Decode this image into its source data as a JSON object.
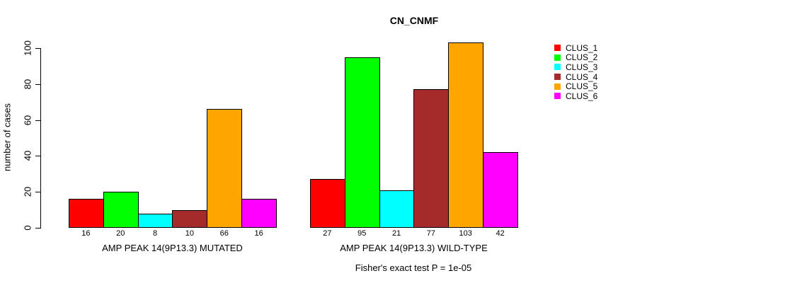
{
  "chart": {
    "title": "CN_CNMF",
    "y_axis_label": "number of cases",
    "footnote": "Fisher's exact test P = 1e-05"
  },
  "chart_data": {
    "type": "bar",
    "title": "CN_CNMF",
    "xlabel": "",
    "ylabel": "number of cases",
    "ylim": [
      0,
      100
    ],
    "yticks": [
      0,
      20,
      40,
      60,
      80,
      100
    ],
    "grid": false,
    "legend_position": "right",
    "show_values_under_bars": true,
    "categories": [
      "AMP PEAK 14(9P13.3) MUTATED",
      "AMP PEAK 14(9P13.3) WILD-TYPE"
    ],
    "series": [
      {
        "name": "CLUS_1",
        "color": "#FF0000",
        "values": [
          16,
          27
        ]
      },
      {
        "name": "CLUS_2",
        "color": "#00FF00",
        "values": [
          20,
          95
        ]
      },
      {
        "name": "CLUS_3",
        "color": "#00FFFF",
        "values": [
          8,
          21
        ]
      },
      {
        "name": "CLUS_4",
        "color": "#A52A2A",
        "values": [
          10,
          77
        ]
      },
      {
        "name": "CLUS_5",
        "color": "#FFA500",
        "values": [
          66,
          103
        ]
      },
      {
        "name": "CLUS_6",
        "color": "#FF00FF",
        "values": [
          16,
          42
        ]
      }
    ],
    "annotation": "Fisher's exact test P = 1e-05"
  }
}
